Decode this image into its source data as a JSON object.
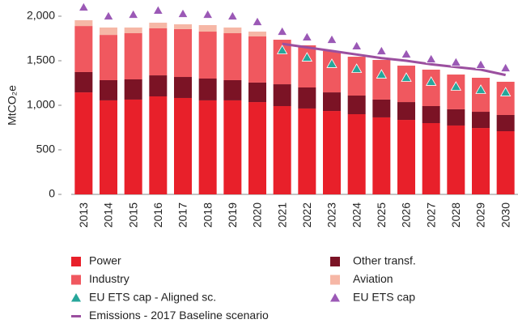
{
  "chart_data": {
    "type": "bar",
    "stacked": true,
    "y_label": "MtCO₂e",
    "categories": [
      "2013",
      "2014",
      "2015",
      "2016",
      "2017",
      "2018",
      "2019",
      "2020",
      "2021",
      "2022",
      "2023",
      "2024",
      "2025",
      "2026",
      "2027",
      "2028",
      "2029",
      "2030"
    ],
    "ylim": [
      0,
      2100
    ],
    "yticks": [
      0,
      500,
      {
        "value": 1000,
        "label": "1,000"
      },
      {
        "value": 1500,
        "label": "1,500"
      },
      {
        "value": 2000,
        "label": "2,000"
      }
    ],
    "series": [
      {
        "name": "Power",
        "type": "bar",
        "color": "#e8202a",
        "values": [
          1145,
          1055,
          1064,
          1100,
          1082,
          1055,
          1055,
          1036,
          991,
          964,
          936,
          900,
          864,
          836,
          800,
          773,
          745,
          709
        ]
      },
      {
        "name": "Other transf.",
        "type": "bar",
        "color": "#7b1325",
        "values": [
          228,
          227,
          227,
          236,
          236,
          245,
          227,
          219,
          245,
          236,
          209,
          209,
          200,
          200,
          191,
          182,
          182,
          182
        ]
      },
      {
        "name": "Industry",
        "type": "bar",
        "color": "#f0585f",
        "values": [
          517,
          508,
          518,
          528,
          537,
          527,
          527,
          518,
          500,
          473,
          464,
          436,
          445,
          409,
          409,
          390,
          382,
          373
        ]
      },
      {
        "name": "Aviation",
        "type": "bar",
        "color": "#f6b7a6",
        "values": [
          65,
          83,
          64,
          63,
          54,
          73,
          64,
          54,
          null,
          null,
          null,
          null,
          null,
          null,
          null,
          null,
          null,
          null
        ]
      },
      {
        "name": "EU ETS cap - Aligned sc.",
        "type": "scatter",
        "color": "#26a69a",
        "values": [
          null,
          null,
          null,
          null,
          null,
          null,
          null,
          null,
          1618,
          1536,
          1464,
          1409,
          1345,
          1309,
          1264,
          1209,
          1173,
          1145
        ]
      },
      {
        "name": "EU ETS cap",
        "type": "scatter",
        "color": "#9b59b6",
        "values": [
          2100,
          2000,
          2018,
          2064,
          2027,
          2018,
          2000,
          1936,
          1827,
          1764,
          1736,
          1664,
          1609,
          1573,
          1518,
          1482,
          1455,
          1418
        ]
      },
      {
        "name": "Emissions - 2017 Baseline scenario",
        "type": "line",
        "color": "#9b4f9f",
        "values": [
          null,
          null,
          null,
          null,
          null,
          null,
          null,
          null,
          1690,
          1650,
          1610,
          1570,
          1530,
          1500,
          1460,
          1430,
          1400,
          1340
        ]
      }
    ]
  }
}
